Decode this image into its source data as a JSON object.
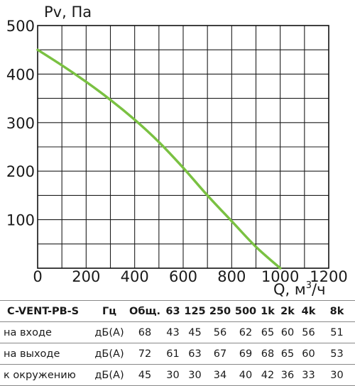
{
  "chart_data": {
    "type": "line",
    "ylabel": "Pv, Па",
    "xlabel_prefix": "Q, м",
    "xlabel_sup": "3",
    "xlabel_suffix": "/ч",
    "xlim": [
      0,
      1200
    ],
    "ylim": [
      0,
      500
    ],
    "x_ticks": [
      0,
      200,
      400,
      600,
      800,
      1000,
      1200
    ],
    "y_ticks": [
      100,
      200,
      300,
      400,
      500
    ],
    "x_tick_labels": [
      "0",
      "200",
      "400",
      "600",
      "800",
      "1000",
      "1200"
    ],
    "y_tick_labels": [
      "100",
      "200",
      "300",
      "400",
      "500"
    ],
    "grid": true,
    "line_color": "#7ac142",
    "series": [
      {
        "x": [
          0,
          100,
          200,
          300,
          400,
          500,
          600,
          700,
          800,
          900,
          1000
        ],
        "y": [
          450,
          418,
          384,
          347,
          306,
          260,
          207,
          150,
          97,
          44,
          0
        ]
      }
    ]
  },
  "table": {
    "model": "C-VENT-PB-S",
    "headers": [
      "Гц",
      "Общ.",
      "63",
      "125",
      "250",
      "500",
      "1k",
      "2k",
      "4k",
      "8k"
    ],
    "rows": [
      {
        "label": "на входе",
        "unit": "дБ(А)",
        "values": [
          "68",
          "43",
          "45",
          "56",
          "62",
          "65",
          "60",
          "56",
          "51"
        ]
      },
      {
        "label": "на выходе",
        "unit": "дБ(А)",
        "values": [
          "72",
          "61",
          "63",
          "67",
          "69",
          "68",
          "65",
          "60",
          "53"
        ]
      },
      {
        "label": "к окружению",
        "unit": "дБ(А)",
        "values": [
          "45",
          "30",
          "30",
          "34",
          "40",
          "42",
          "36",
          "33",
          "30"
        ]
      }
    ]
  }
}
